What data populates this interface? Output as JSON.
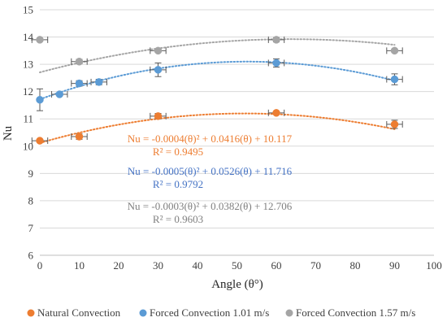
{
  "chart_data": {
    "type": "scatter",
    "title": "",
    "xlabel": "Angle (θ°)",
    "ylabel": "Nu",
    "xlim": [
      0,
      100
    ],
    "ylim": [
      6,
      15
    ],
    "x_ticks": [
      "0",
      "10",
      "20",
      "30",
      "40",
      "50",
      "60",
      "70",
      "80",
      "90",
      "100"
    ],
    "y_ticks": [
      "6",
      "7",
      "8",
      "9",
      "10",
      "11",
      "12",
      "13",
      "14",
      "15"
    ],
    "grid": "horizontal",
    "legend_position": "bottom",
    "series": [
      {
        "name": "Natural Convection",
        "color": "#ED7D31",
        "marker": "circle",
        "x": [
          0,
          10,
          30,
          60,
          90
        ],
        "y": [
          10.2,
          10.35,
          11.1,
          11.22,
          10.8
        ],
        "xerr": [
          2,
          2,
          2,
          2,
          2
        ],
        "yerr": [
          0.05,
          0.1,
          0.1,
          0.05,
          0.15
        ],
        "trendline": {
          "coefficients": [
            -0.0004,
            0.0416,
            10.117
          ],
          "equation": "Nu = -0.0004(θ)² + 0.0416(θ) + 10.117",
          "r2": "R² = 0.9495"
        }
      },
      {
        "name": "Forced Convection 1.01 m/s",
        "color": "#5B9BD5",
        "marker": "circle",
        "x": [
          0,
          5,
          10,
          15,
          30,
          60,
          90
        ],
        "y": [
          11.7,
          11.9,
          12.3,
          12.35,
          12.8,
          13.05,
          12.45
        ],
        "xerr": [
          0,
          2,
          2,
          2,
          2,
          2,
          2
        ],
        "yerr": [
          0.4,
          0.05,
          0.1,
          0.1,
          0.25,
          0.15,
          0.2
        ],
        "trendline": {
          "coefficients": [
            -0.0005,
            0.0526,
            11.716
          ],
          "equation": "Nu = -0.0005(θ)² + 0.0526(θ) + 11.716",
          "r2": "R² = 0.9792"
        }
      },
      {
        "name": "Forced Convection 1.57 m/s",
        "color": "#A5A5A5",
        "marker": "circle",
        "x": [
          0,
          10,
          30,
          60,
          90
        ],
        "y": [
          13.9,
          13.1,
          13.5,
          13.9,
          13.5
        ],
        "xerr": [
          2,
          2,
          2,
          2,
          2
        ],
        "yerr": [
          0.05,
          0.08,
          0.05,
          0.08,
          0.05
        ],
        "trendline": {
          "coefficients": [
            -0.0003,
            0.0382,
            12.706
          ],
          "equation": "Nu = -0.0003(θ)² + 0.0382(θ) + 12.706",
          "r2": "R² = 0.9603"
        }
      }
    ]
  }
}
